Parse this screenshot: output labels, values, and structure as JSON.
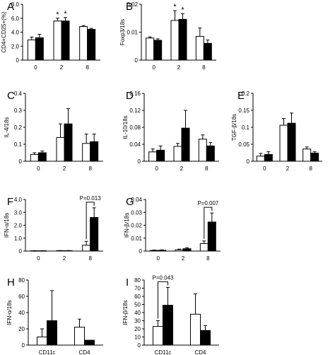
{
  "colors": {
    "control": "#ffffff",
    "treated": "#000000",
    "axis": "#000000"
  },
  "chart_data": [
    {
      "panel": "A",
      "type": "bar",
      "ylabel": "CD4+CD25+(%)",
      "ylim": [
        0,
        8
      ],
      "yticks": [
        "0",
        "2.0",
        "4.0",
        "6.0",
        "8.0"
      ],
      "ytick_values": [
        0,
        2,
        4,
        6,
        8
      ],
      "categories": [
        "0",
        "2",
        "8"
      ],
      "series": [
        {
          "values": [
            2.9,
            5.6,
            4.8
          ],
          "errors": [
            0.4,
            0.4,
            0.15
          ]
        },
        {
          "values": [
            3.2,
            5.6,
            4.4
          ],
          "errors": [
            0.5,
            0.5,
            0.15
          ]
        }
      ],
      "annotations": [
        {
          "cat": 1,
          "series": 0,
          "text": "*"
        },
        {
          "cat": 1,
          "series": 1,
          "text": "*"
        }
      ]
    },
    {
      "panel": "B",
      "type": "bar",
      "ylabel": "Foxp3/18s",
      "ylim": [
        0,
        0.02
      ],
      "yticks": [
        "0",
        "0.01",
        "0.02"
      ],
      "ytick_values": [
        0,
        0.01,
        0.02
      ],
      "categories": [
        "0",
        "2",
        "8"
      ],
      "series": [
        {
          "values": [
            0.0079,
            0.0142,
            0.0085
          ],
          "errors": [
            0.0004,
            0.0035,
            0.003
          ]
        },
        {
          "values": [
            0.0071,
            0.0146,
            0.006
          ],
          "errors": [
            0.0005,
            0.002,
            0.0012
          ]
        }
      ],
      "annotations": [
        {
          "cat": 1,
          "series": 0,
          "text": "*"
        },
        {
          "cat": 1,
          "series": 1,
          "text": "*"
        }
      ]
    },
    {
      "panel": "C",
      "type": "bar",
      "ylabel": "IL-4/18s",
      "ylim": [
        0,
        0.4
      ],
      "yticks": [
        "0",
        "0.1",
        "0.2",
        "0.3",
        "0.4"
      ],
      "ytick_values": [
        0,
        0.1,
        0.2,
        0.3,
        0.4
      ],
      "categories": [
        "0",
        "2",
        "8"
      ],
      "series": [
        {
          "values": [
            0.04,
            0.14,
            0.105
          ],
          "errors": [
            0.01,
            0.08,
            0.055
          ]
        },
        {
          "values": [
            0.05,
            0.22,
            0.115
          ],
          "errors": [
            0.01,
            0.09,
            0.045
          ]
        }
      ],
      "annotations": []
    },
    {
      "panel": "D",
      "type": "bar",
      "ylabel": "IL-10/18s",
      "ylim": [
        0,
        0.16
      ],
      "yticks": [
        "0",
        "0.04",
        "0.08",
        "0.12",
        "0.16"
      ],
      "ytick_values": [
        0,
        0.04,
        0.08,
        0.12,
        0.16
      ],
      "categories": [
        "0",
        "2",
        "8"
      ],
      "series": [
        {
          "values": [
            0.022,
            0.035,
            0.052
          ],
          "errors": [
            0.007,
            0.007,
            0.01
          ]
        },
        {
          "values": [
            0.026,
            0.078,
            0.036
          ],
          "errors": [
            0.01,
            0.042,
            0.008
          ]
        }
      ],
      "annotations": []
    },
    {
      "panel": "E",
      "type": "bar",
      "ylabel": "TGF-β/18s",
      "ylim": [
        0,
        0.2
      ],
      "yticks": [
        "0",
        "0.05",
        "0.1",
        "0.15",
        "0.2"
      ],
      "ytick_values": [
        0,
        0.05,
        0.1,
        0.15,
        0.2
      ],
      "categories": [
        "0",
        "2",
        "8"
      ],
      "series": [
        {
          "values": [
            0.015,
            0.106,
            0.036
          ],
          "errors": [
            0.008,
            0.02,
            0.006
          ]
        },
        {
          "values": [
            0.02,
            0.112,
            0.024
          ],
          "errors": [
            0.008,
            0.03,
            0.004
          ]
        }
      ],
      "annotations": []
    },
    {
      "panel": "F",
      "type": "bar",
      "ylabel": "IFN-α/18s",
      "ylim": [
        0,
        4
      ],
      "yticks": [
        "0",
        "1.0",
        "2.0",
        "3.0",
        "4.0"
      ],
      "ytick_values": [
        0,
        1,
        2,
        3,
        4
      ],
      "categories": [
        "0",
        "2",
        "8"
      ],
      "series": [
        {
          "values": [
            0.02,
            0.03,
            0.45
          ],
          "errors": [
            0.01,
            0.01,
            0.3
          ]
        },
        {
          "values": [
            0.02,
            0.03,
            2.6
          ],
          "errors": [
            0.01,
            0.01,
            0.75
          ]
        }
      ],
      "annotations": [
        {
          "cat": 2,
          "text": "P=0.013"
        }
      ]
    },
    {
      "panel": "G",
      "type": "bar",
      "ylabel": "IFN-β/18s",
      "ylim": [
        0,
        0.04
      ],
      "yticks": [
        "0",
        "0.01",
        "0.02",
        "0.03",
        "0.04"
      ],
      "ytick_values": [
        0,
        0.01,
        0.02,
        0.03,
        0.04
      ],
      "categories": [
        "0",
        "2",
        "8"
      ],
      "series": [
        {
          "values": [
            0.0005,
            0.001,
            0.0058
          ],
          "errors": [
            0.0003,
            0.0005,
            0.002
          ]
        },
        {
          "values": [
            0.0006,
            0.0018,
            0.0225
          ],
          "errors": [
            0.0003,
            0.0008,
            0.007
          ]
        }
      ],
      "annotations": [
        {
          "cat": 2,
          "text": "P=0.007"
        }
      ]
    },
    {
      "panel": "H",
      "type": "bar",
      "ylabel": "IFN-α/18s",
      "ylim": [
        0,
        80
      ],
      "yticks": [
        "0",
        "20",
        "40",
        "60",
        "80"
      ],
      "ytick_values": [
        0,
        20,
        40,
        60,
        80
      ],
      "categories": [
        "CD11c",
        "CD4"
      ],
      "series": [
        {
          "values": [
            10,
            22
          ],
          "errors": [
            10,
            10
          ]
        },
        {
          "values": [
            30,
            6
          ],
          "errors": [
            37,
            0
          ]
        }
      ],
      "annotations": []
    },
    {
      "panel": "I",
      "type": "bar",
      "ylabel": "IFN-β/18s",
      "ylim": [
        0,
        80
      ],
      "yticks": [
        "0",
        "10",
        "20",
        "30",
        "40",
        "50",
        "60",
        "70",
        "80"
      ],
      "ytick_values": [
        0,
        10,
        20,
        30,
        40,
        50,
        60,
        70,
        80
      ],
      "categories": [
        "CD11c",
        "CD4"
      ],
      "series": [
        {
          "values": [
            23,
            38
          ],
          "errors": [
            7,
            25
          ]
        },
        {
          "values": [
            49,
            18
          ],
          "errors": [
            22,
            6
          ]
        }
      ],
      "annotations": [
        {
          "cat": 0,
          "text": "P=0.043"
        }
      ]
    }
  ]
}
